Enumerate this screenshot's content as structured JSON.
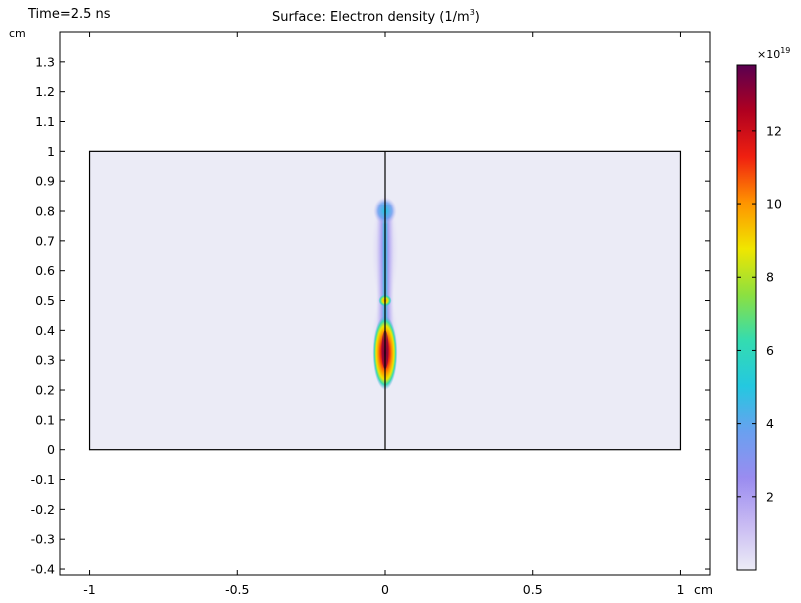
{
  "header": {
    "time_label": "Time=2.5 ns",
    "title": "Surface: Electron density (1/m",
    "title_sup": "3",
    "title_end": ")"
  },
  "chart_data": {
    "type": "heatmap",
    "quantity": "Electron density",
    "time": "2.5 ns",
    "x_unit": "cm",
    "y_unit": "cm",
    "xlim": [
      -1.1,
      1.1
    ],
    "ylim": [
      -0.42,
      1.4
    ],
    "x_ticks": [
      -1,
      -0.5,
      0,
      0.5,
      1
    ],
    "x_tick_labels": [
      "-1",
      "-0.5",
      "0",
      "0.5",
      "1"
    ],
    "y_ticks": [
      1.3,
      1.2,
      1.1,
      1,
      0.9,
      0.8,
      0.7,
      0.6,
      0.5,
      0.4,
      0.3,
      0.2,
      0.1,
      0,
      -0.1,
      -0.2,
      -0.3,
      -0.4
    ],
    "y_tick_labels": [
      "1.3",
      "1.2",
      "1.1",
      "1",
      "0.9",
      "0.8",
      "0.7",
      "0.6",
      "0.5",
      "0.4",
      "0.3",
      "0.2",
      "0.1",
      "0",
      "-0.1",
      "-0.2",
      "-0.3",
      "-0.4"
    ],
    "domain": {
      "x": [
        -1,
        1
      ],
      "y": [
        0,
        1
      ]
    },
    "symmetry_axis_x": 0,
    "streamer": {
      "x": 0,
      "y_range": [
        0.24,
        0.84
      ],
      "head_y": 0.5,
      "peak_y_range": [
        0.27,
        0.4
      ],
      "peak_value": 13.5
    },
    "colorbar": {
      "multiplier": "×10",
      "multiplier_exp": "19",
      "min": 0,
      "max": 13.8,
      "ticks": [
        2,
        4,
        6,
        8,
        10,
        12
      ],
      "tick_labels": [
        "2",
        "4",
        "6",
        "8",
        "10",
        "12"
      ],
      "colors": [
        "#ececf6",
        "#c8baf3",
        "#9a8cf0",
        "#6aa0f0",
        "#24c8e0",
        "#34dcb0",
        "#8ce040",
        "#f0e600",
        "#ff9400",
        "#f02010",
        "#b00020",
        "#5a0050"
      ]
    }
  }
}
